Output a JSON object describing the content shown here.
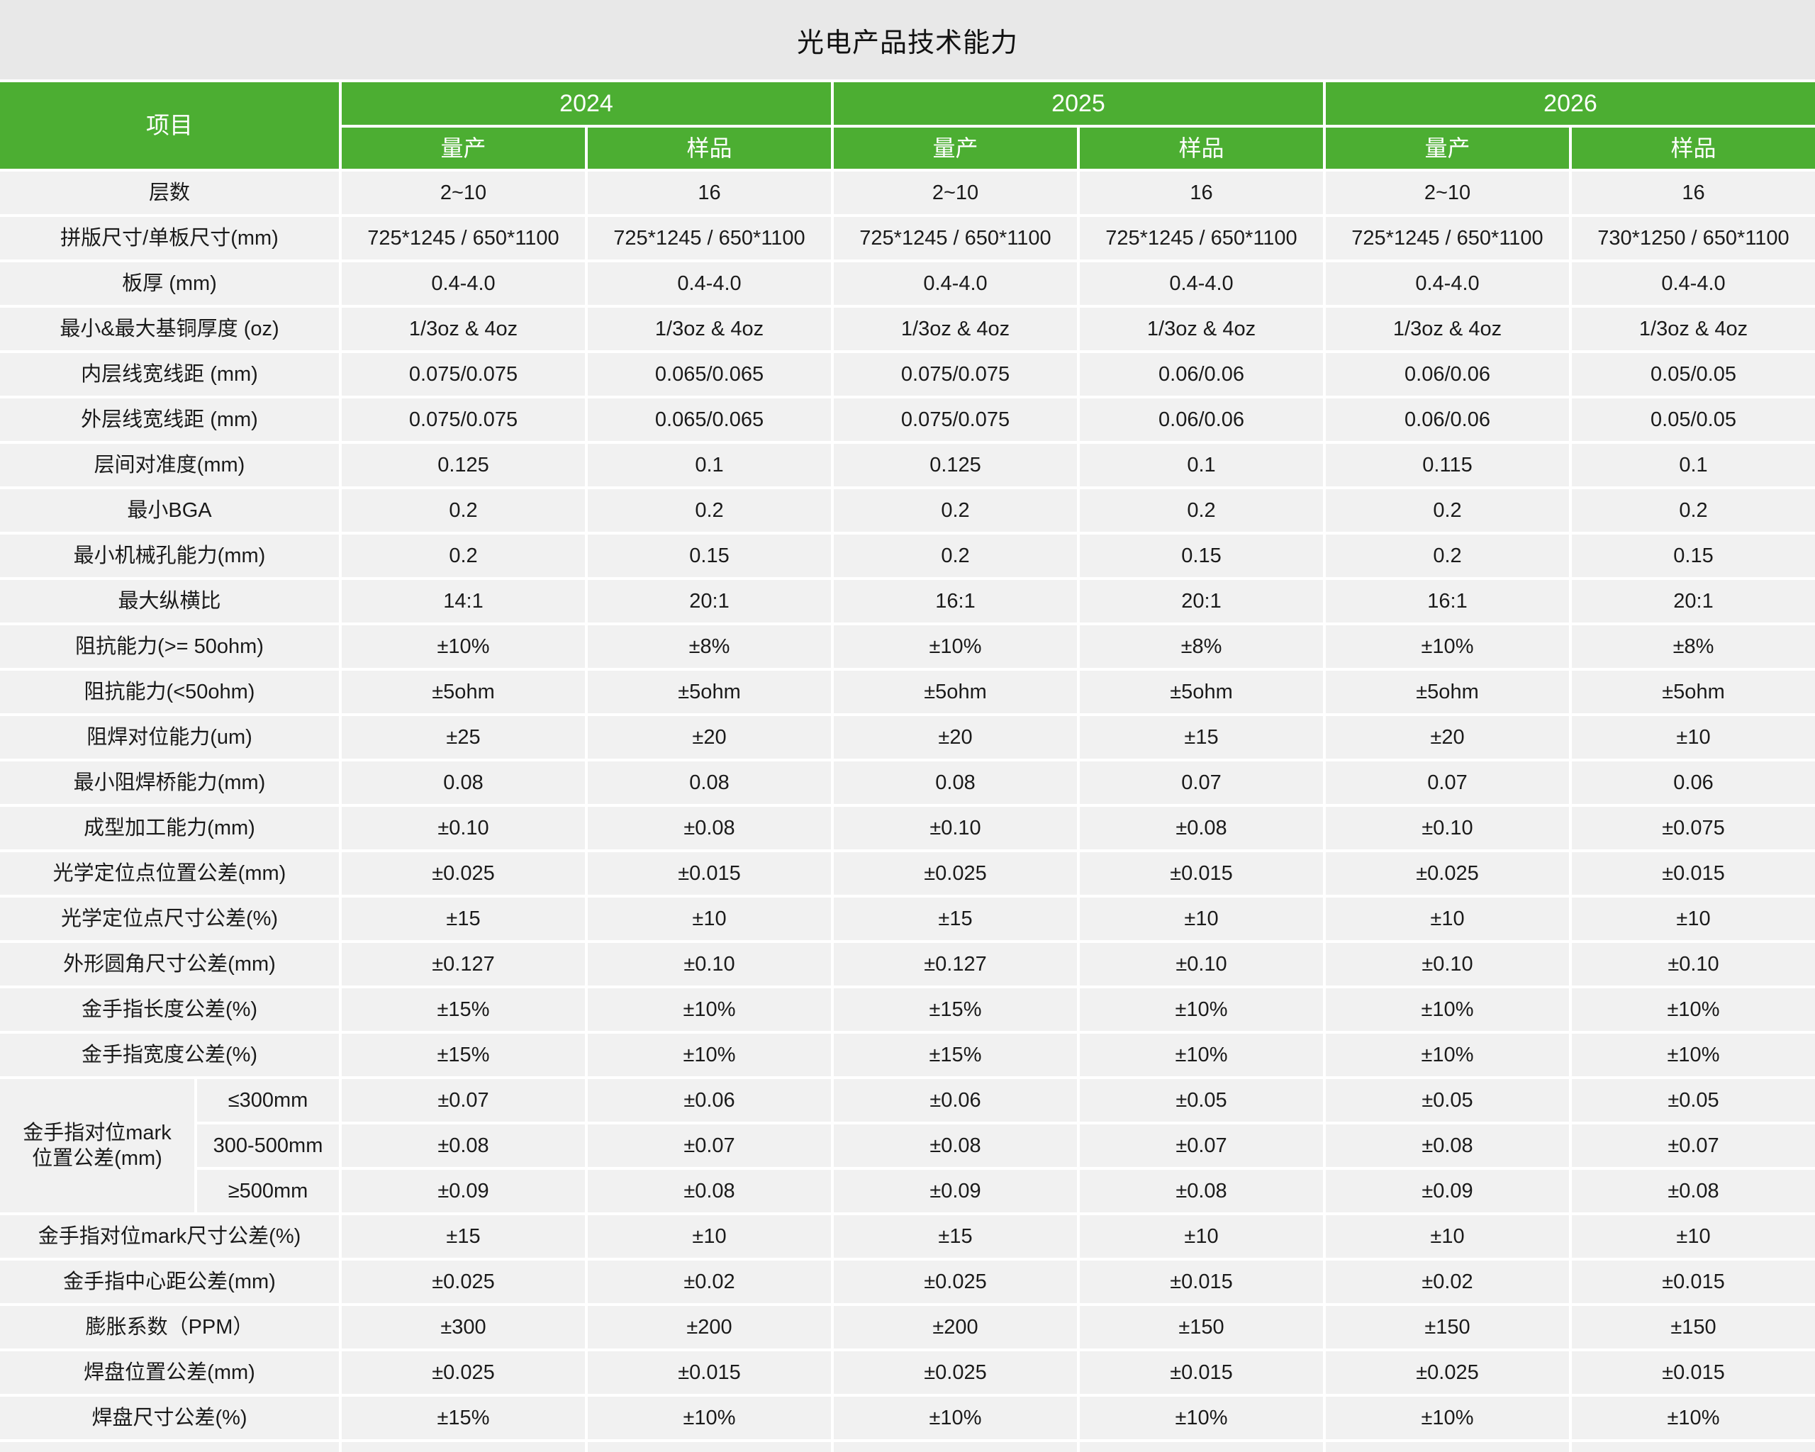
{
  "title": "光电产品技术能力",
  "colors": {
    "accent_green": "#4CAE32",
    "row_bg": "#F1F1F1",
    "title_bg": "#E8E8E8",
    "gridline": "#FFFFFF"
  },
  "table": {
    "project_header": "项目",
    "year_groups": [
      {
        "year": "2024",
        "subs": [
          "量产",
          "样品"
        ]
      },
      {
        "year": "2025",
        "subs": [
          "量产",
          "样品"
        ]
      },
      {
        "year": "2026",
        "subs": [
          "量产",
          "样品"
        ]
      }
    ],
    "rows": [
      {
        "label": "层数",
        "values": [
          "2~10",
          "16",
          "2~10",
          "16",
          "2~10",
          "16"
        ]
      },
      {
        "label": "拼版尺寸/单板尺寸(mm)",
        "values": [
          "725*1245 / 650*1100",
          "725*1245 / 650*1100",
          "725*1245 / 650*1100",
          "725*1245 / 650*1100",
          "725*1245 / 650*1100",
          "730*1250 / 650*1100"
        ]
      },
      {
        "label": "板厚 (mm)",
        "values": [
          "0.4-4.0",
          "0.4-4.0",
          "0.4-4.0",
          "0.4-4.0",
          "0.4-4.0",
          "0.4-4.0"
        ]
      },
      {
        "label": "最小&最大基铜厚度 (oz)",
        "values": [
          "1/3oz & 4oz",
          "1/3oz & 4oz",
          "1/3oz & 4oz",
          "1/3oz & 4oz",
          "1/3oz & 4oz",
          "1/3oz & 4oz"
        ]
      },
      {
        "label": "内层线宽线距 (mm)",
        "values": [
          "0.075/0.075",
          "0.065/0.065",
          "0.075/0.075",
          "0.06/0.06",
          "0.06/0.06",
          "0.05/0.05"
        ]
      },
      {
        "label": "外层线宽线距 (mm)",
        "values": [
          "0.075/0.075",
          "0.065/0.065",
          "0.075/0.075",
          "0.06/0.06",
          "0.06/0.06",
          "0.05/0.05"
        ]
      },
      {
        "label": "层间对准度(mm)",
        "values": [
          "0.125",
          "0.1",
          "0.125",
          "0.1",
          "0.115",
          "0.1"
        ]
      },
      {
        "label": "最小BGA",
        "values": [
          "0.2",
          "0.2",
          "0.2",
          "0.2",
          "0.2",
          "0.2"
        ]
      },
      {
        "label": "最小机械孔能力(mm)",
        "values": [
          "0.2",
          "0.15",
          "0.2",
          "0.15",
          "0.2",
          "0.15"
        ]
      },
      {
        "label": "最大纵横比",
        "values": [
          "14:1",
          "20:1",
          "16:1",
          "20:1",
          "16:1",
          "20:1"
        ]
      },
      {
        "label": "阻抗能力(>= 50ohm)",
        "values": [
          "±10%",
          "±8%",
          "±10%",
          "±8%",
          "±10%",
          "±8%"
        ]
      },
      {
        "label": "阻抗能力(<50ohm)",
        "values": [
          "±5ohm",
          "±5ohm",
          "±5ohm",
          "±5ohm",
          "±5ohm",
          "±5ohm"
        ]
      },
      {
        "label": "阻焊对位能力(um)",
        "values": [
          "±25",
          "±20",
          "±20",
          "±15",
          "±20",
          "±10"
        ]
      },
      {
        "label": "最小阻焊桥能力(mm)",
        "values": [
          "0.08",
          "0.08",
          "0.08",
          "0.07",
          "0.07",
          "0.06"
        ]
      },
      {
        "label": "成型加工能力(mm)",
        "values": [
          "±0.10",
          "±0.08",
          "±0.10",
          "±0.08",
          "±0.10",
          "±0.075"
        ]
      },
      {
        "label": "光学定位点位置公差(mm)",
        "values": [
          "±0.025",
          "±0.015",
          "±0.025",
          "±0.015",
          "±0.025",
          "±0.015"
        ]
      },
      {
        "label": "光学定位点尺寸公差(%)",
        "values": [
          "±15",
          "±10",
          "±15",
          "±10",
          "±10",
          "±10"
        ]
      },
      {
        "label": "外形圆角尺寸公差(mm)",
        "values": [
          "±0.127",
          "±0.10",
          "±0.127",
          "±0.10",
          "±0.10",
          "±0.10"
        ]
      },
      {
        "label": "金手指长度公差(%)",
        "values": [
          "±15%",
          "±10%",
          "±15%",
          "±10%",
          "±10%",
          "±10%"
        ]
      },
      {
        "label": "金手指宽度公差(%)",
        "values": [
          "±15%",
          "±10%",
          "±15%",
          "±10%",
          "±10%",
          "±10%"
        ]
      },
      {
        "group": "金手指对位mark\n位置公差(mm)",
        "sub": "≤300mm",
        "values": [
          "±0.07",
          "±0.06",
          "±0.06",
          "±0.05",
          "±0.05",
          "±0.05"
        ]
      },
      {
        "sub": "300-500mm",
        "values": [
          "±0.08",
          "±0.07",
          "±0.08",
          "±0.07",
          "±0.08",
          "±0.07"
        ]
      },
      {
        "sub": "≥500mm",
        "values": [
          "±0.09",
          "±0.08",
          "±0.09",
          "±0.08",
          "±0.09",
          "±0.08"
        ]
      },
      {
        "label": "金手指对位mark尺寸公差(%)",
        "values": [
          "±15",
          "±10",
          "±15",
          "±10",
          "±10",
          "±10"
        ]
      },
      {
        "label": "金手指中心距公差(mm)",
        "values": [
          "±0.025",
          "±0.02",
          "±0.025",
          "±0.015",
          "±0.02",
          "±0.015"
        ]
      },
      {
        "label": "膨胀系数（PPM）",
        "values": [
          "±300",
          "±200",
          "±200",
          "±150",
          "±150",
          "±150"
        ]
      },
      {
        "label": "焊盘位置公差(mm)",
        "values": [
          "±0.025",
          "±0.015",
          "±0.025",
          "±0.015",
          "±0.025",
          "±0.015"
        ]
      },
      {
        "label": "焊盘尺寸公差(%)",
        "values": [
          "±15%",
          "±10%",
          "±10%",
          "±10%",
          "±10%",
          "±10%"
        ]
      }
    ]
  }
}
